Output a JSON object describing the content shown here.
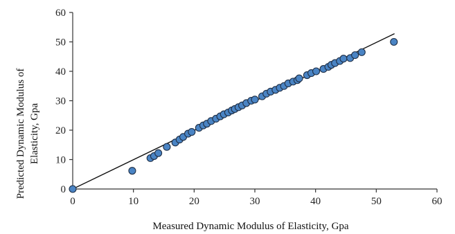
{
  "chart_data": {
    "type": "scatter",
    "title": "",
    "xlabel": "Measured Dynamic Modulus of Elasticity, Gpa",
    "ylabel_lines": [
      "Predicted Dynamic Modulus of",
      "Elasticity, Gpa"
    ],
    "xlim": [
      0,
      60
    ],
    "ylim": [
      0,
      60
    ],
    "x_ticks": [
      0,
      10,
      20,
      30,
      40,
      50,
      60
    ],
    "y_ticks": [
      0,
      10,
      20,
      30,
      40,
      50,
      60
    ],
    "grid": false,
    "legend": "none",
    "point_color": "#4a84c4",
    "points": [
      [
        0,
        0
      ],
      [
        9.8,
        6.2
      ],
      [
        12.8,
        10.5
      ],
      [
        13.4,
        11.2
      ],
      [
        14.1,
        12.2
      ],
      [
        15.5,
        14.3
      ],
      [
        16.9,
        15.8
      ],
      [
        17.6,
        16.8
      ],
      [
        18.2,
        17.7
      ],
      [
        19.0,
        18.8
      ],
      [
        19.6,
        19.4
      ],
      [
        20.8,
        20.8
      ],
      [
        21.5,
        21.6
      ],
      [
        22.1,
        22.2
      ],
      [
        22.8,
        23.1
      ],
      [
        23.6,
        23.9
      ],
      [
        24.3,
        24.7
      ],
      [
        24.9,
        25.4
      ],
      [
        25.6,
        26.0
      ],
      [
        26.2,
        26.7
      ],
      [
        26.7,
        27.2
      ],
      [
        27.3,
        27.8
      ],
      [
        27.9,
        28.4
      ],
      [
        28.6,
        29.2
      ],
      [
        29.4,
        30.0
      ],
      [
        30.0,
        30.4
      ],
      [
        31.2,
        31.5
      ],
      [
        31.9,
        32.4
      ],
      [
        32.6,
        33.1
      ],
      [
        33.4,
        33.7
      ],
      [
        34.1,
        34.4
      ],
      [
        34.8,
        35.0
      ],
      [
        35.5,
        35.9
      ],
      [
        36.3,
        36.5
      ],
      [
        37.0,
        37.0
      ],
      [
        37.3,
        37.6
      ],
      [
        38.6,
        38.7
      ],
      [
        39.3,
        39.4
      ],
      [
        40.1,
        40.0
      ],
      [
        41.3,
        40.8
      ],
      [
        42.1,
        41.5
      ],
      [
        42.6,
        42.2
      ],
      [
        43.2,
        42.8
      ],
      [
        44.0,
        43.5
      ],
      [
        44.6,
        44.3
      ],
      [
        45.7,
        44.5
      ],
      [
        46.5,
        45.5
      ],
      [
        47.6,
        46.5
      ],
      [
        52.9,
        50.0
      ]
    ],
    "trendline": [
      [
        0,
        0
      ],
      [
        53,
        52.8
      ]
    ]
  }
}
